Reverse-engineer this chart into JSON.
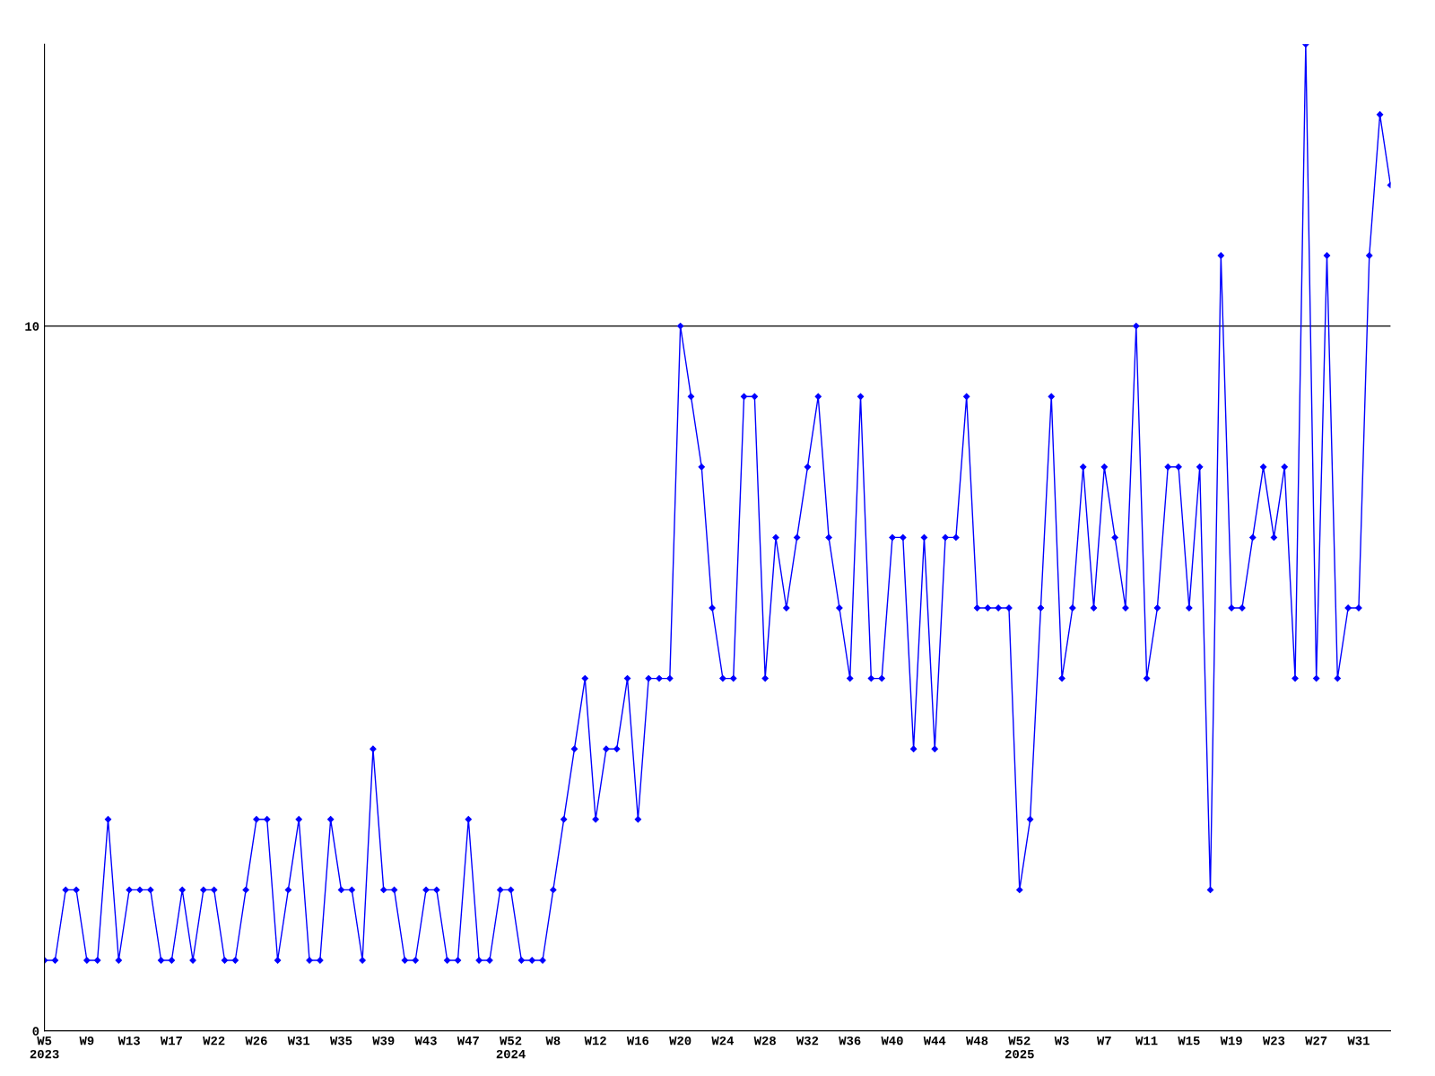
{
  "chart_data": {
    "type": "line",
    "categories": [
      "W5\n2023",
      null,
      null,
      null,
      "W9",
      null,
      null,
      null,
      "W13",
      null,
      null,
      null,
      "W17",
      null,
      null,
      null,
      "W22",
      null,
      null,
      null,
      "W26",
      null,
      null,
      null,
      "W31",
      null,
      null,
      null,
      "W35",
      null,
      null,
      null,
      "W39",
      null,
      null,
      null,
      "W43",
      null,
      null,
      null,
      "W47",
      null,
      null,
      null,
      "W52\n2024",
      null,
      null,
      null,
      "W8",
      null,
      null,
      null,
      "W12",
      null,
      null,
      null,
      "W16",
      null,
      null,
      null,
      "W20",
      null,
      null,
      null,
      "W24",
      null,
      null,
      null,
      "W28",
      null,
      null,
      null,
      "W32",
      null,
      null,
      null,
      "W36",
      null,
      null,
      null,
      "W40",
      null,
      null,
      null,
      "W44",
      null,
      null,
      null,
      "W48",
      null,
      null,
      null,
      "W52\n2025",
      null,
      null,
      null,
      "W3",
      null,
      null,
      null,
      "W7",
      null,
      null,
      null,
      "W11",
      null,
      null,
      null,
      "W15",
      null,
      null,
      null,
      "W19",
      null,
      null,
      null,
      "W23",
      null,
      null,
      null,
      "W27",
      null,
      null,
      null,
      "W31",
      null,
      null,
      null
    ],
    "series": [
      {
        "color": "#0000ff",
        "values": [
          1,
          1,
          2,
          2,
          1,
          1,
          3,
          1,
          2,
          2,
          2,
          1,
          1,
          2,
          1,
          2,
          2,
          1,
          1,
          2,
          3,
          3,
          1,
          2,
          3,
          1,
          1,
          3,
          2,
          2,
          1,
          4,
          2,
          2,
          1,
          1,
          2,
          2,
          1,
          1,
          3,
          1,
          1,
          2,
          2,
          1,
          1,
          1,
          2,
          3,
          4,
          5,
          3,
          4,
          4,
          5,
          3,
          5,
          5,
          5,
          10,
          9,
          8,
          6,
          5,
          5,
          9,
          9,
          5,
          7,
          6,
          7,
          8,
          9,
          7,
          6,
          5,
          9,
          5,
          5,
          7,
          7,
          4,
          7,
          4,
          7,
          7,
          9,
          6,
          6,
          6,
          6,
          2,
          3,
          6,
          9,
          5,
          6,
          8,
          6,
          8,
          7,
          6,
          10,
          5,
          6,
          8,
          8,
          6,
          8,
          2,
          11,
          6,
          6,
          7,
          8,
          7,
          8,
          5,
          14,
          5,
          11,
          5,
          6,
          6,
          11,
          13,
          12
        ]
      }
    ],
    "ylim": [
      0,
      14
    ],
    "yticks": [
      0,
      10
    ],
    "grid": "y",
    "marker": "diamond",
    "line_style": "solid"
  }
}
